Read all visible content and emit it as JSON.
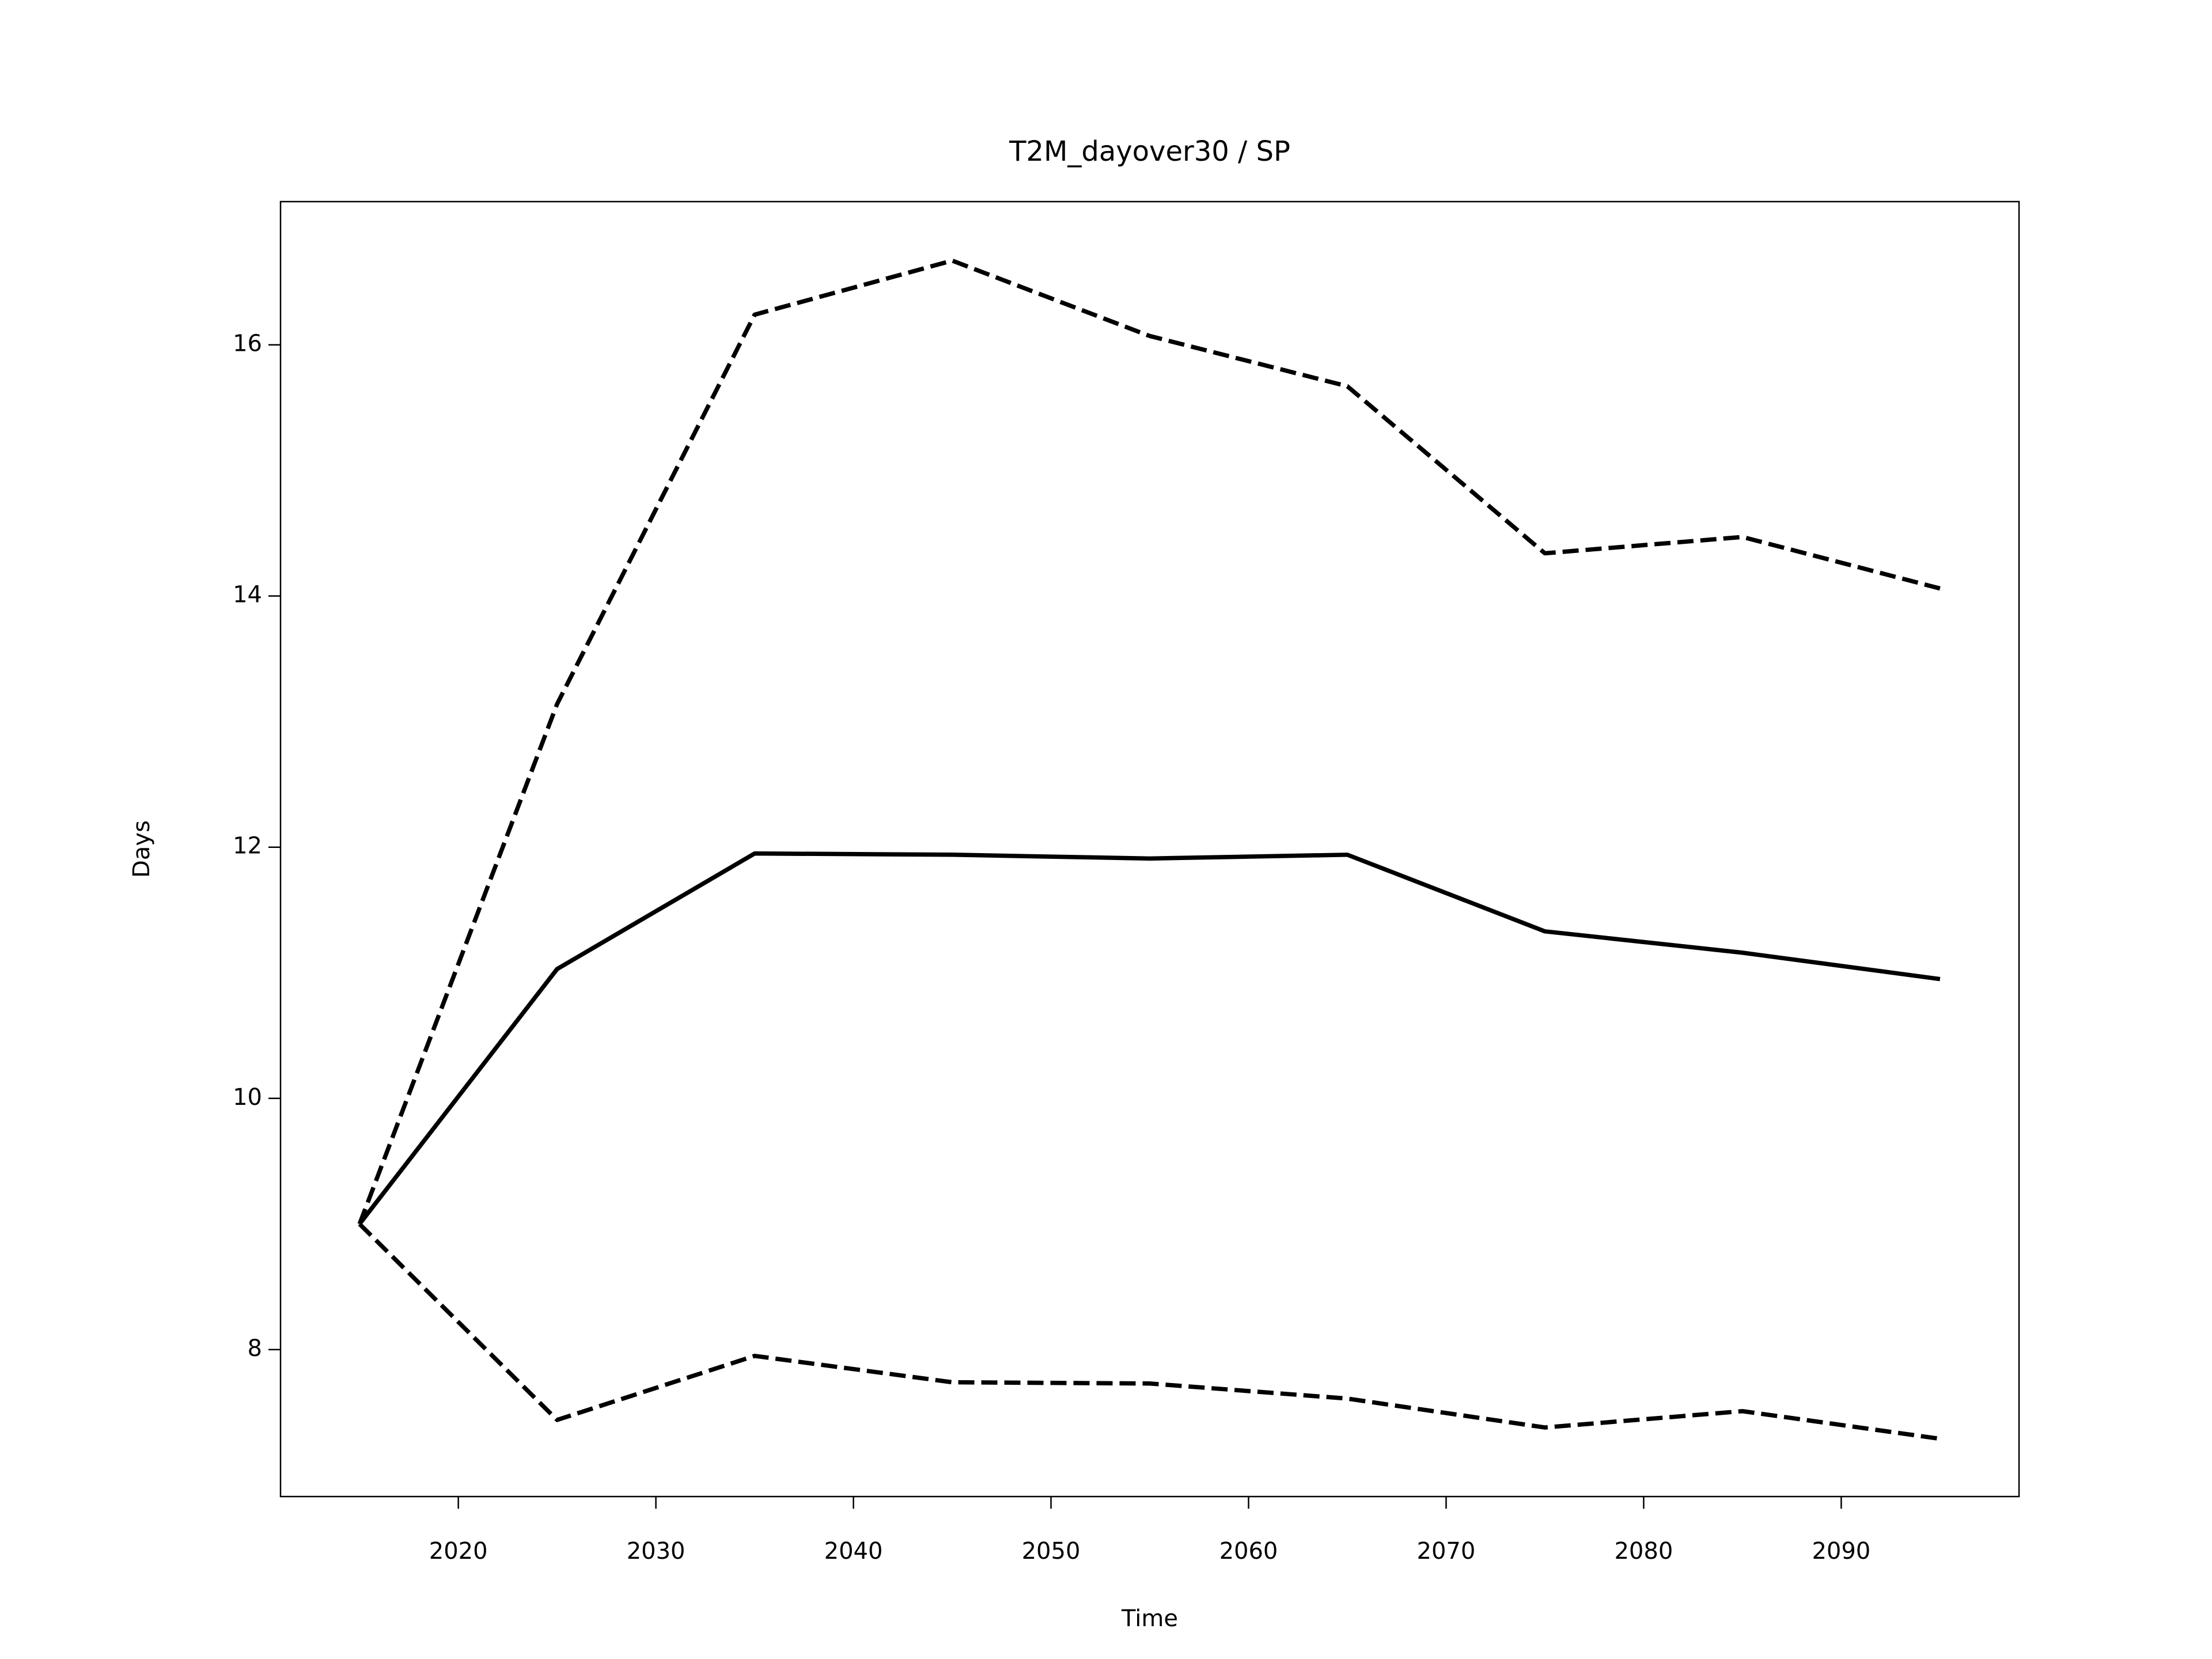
{
  "chart_data": {
    "type": "line",
    "title": "T2M_dayover30 / SP",
    "x_label": "Time",
    "y_label": "Days",
    "x": [
      2015,
      2025,
      2035,
      2045,
      2055,
      2065,
      2075,
      2085,
      2095
    ],
    "series": [
      {
        "color": "#000000",
        "dashed": false,
        "values": [
          9.0,
          11.03,
          11.95,
          11.94,
          11.91,
          11.94,
          11.33,
          11.16,
          10.95
        ]
      },
      {
        "color": "#000000",
        "dashed": true,
        "values": [
          9.0,
          13.14,
          16.24,
          16.67,
          16.07,
          15.67,
          14.34,
          14.47,
          14.06
        ]
      },
      {
        "color": "#000000",
        "dashed": true,
        "values": [
          9.0,
          7.44,
          7.95,
          7.74,
          7.73,
          7.61,
          7.38,
          7.51,
          7.29
        ]
      }
    ],
    "xlim": [
      2011,
      2099
    ],
    "xticks": [
      2020,
      2030,
      2040,
      2050,
      2060,
      2070,
      2080,
      2090
    ],
    "ylim": [
      6.83,
      17.14
    ],
    "yticks": [
      8,
      10,
      12,
      14,
      16
    ],
    "grid": false
  }
}
